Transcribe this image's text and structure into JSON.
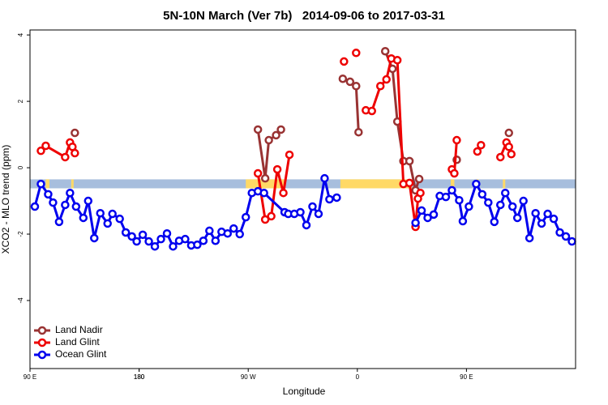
{
  "chart_data": {
    "type": "line",
    "title": "5N-10N March (Ver 7b)   2014-09-06 to 2017-03-31",
    "xlabel": "Longitude",
    "ylabel": "XCO2 - MLO trend (ppm)",
    "xlim": [
      90,
      540
    ],
    "ylim": [
      -6.05,
      4.15
    ],
    "xticks": [
      {
        "value": 90,
        "label": "90 E"
      },
      180,
      {
        "value": 270,
        "label": "90 W"
      },
      {
        "value": 360,
        "label": "0"
      },
      {
        "value": 450,
        "label": "90 E"
      },
      180.0001
    ],
    "yticks": [
      -4,
      -2,
      0,
      2,
      4
    ],
    "legend": "bottom-left",
    "band": {
      "ymin": -0.62,
      "ymax": -0.35,
      "color": "#a7bedd"
    },
    "highlight": {
      "color": "#ffd966",
      "spans": [
        [
          103,
          106
        ],
        [
          124,
          126
        ],
        [
          268,
          300
        ],
        [
          346,
          405
        ],
        [
          437,
          440
        ],
        [
          458,
          460
        ],
        [
          480,
          482
        ]
      ]
    },
    "series": [
      {
        "name": "Land Nadir",
        "color": "#993333",
        "x": [
          127,
          null,
          278,
          284,
          287,
          293,
          297,
          null,
          348,
          354,
          359,
          361,
          null,
          383,
          389,
          393,
          398,
          403,
          408,
          411,
          null,
          442,
          null,
          485
        ],
        "values": [
          1.05,
          null,
          1.15,
          -0.32,
          0.83,
          0.98,
          1.15,
          null,
          2.68,
          2.59,
          2.46,
          1.07,
          null,
          3.51,
          2.98,
          1.39,
          0.2,
          0.2,
          -0.68,
          -0.34,
          null,
          0.24,
          null,
          1.05
        ]
      },
      {
        "name": "Land Glint",
        "color": "#ee0000",
        "x": [
          99,
          103,
          119,
          123,
          125,
          127,
          null,
          278,
          284,
          289,
          294,
          299,
          304,
          null,
          349,
          null,
          359,
          null,
          367,
          372,
          379,
          384,
          388,
          393,
          398,
          403,
          408,
          410,
          412,
          null,
          438,
          440,
          442,
          null,
          459,
          462,
          null,
          478,
          483,
          485,
          487
        ],
        "values": [
          0.51,
          0.66,
          0.32,
          0.76,
          0.63,
          0.44,
          null,
          -0.17,
          -1.56,
          -1.46,
          -0.05,
          -0.76,
          0.39,
          null,
          3.2,
          null,
          3.46,
          null,
          1.73,
          1.71,
          2.46,
          2.66,
          3.29,
          3.24,
          -0.49,
          -0.46,
          -1.78,
          -0.93,
          -0.76,
          null,
          -0.05,
          -0.17,
          0.83,
          null,
          0.49,
          0.68,
          null,
          0.32,
          0.76,
          0.63,
          0.41
        ]
      },
      {
        "name": "Ocean Glint",
        "color": "#0000ee",
        "x": [
          94,
          99,
          105,
          109,
          114,
          119,
          123,
          128,
          134,
          138,
          143,
          148,
          154,
          158,
          164,
          169,
          174,
          178,
          183,
          188,
          193,
          198,
          203,
          208,
          213,
          218,
          223,
          228,
          233,
          238,
          243,
          248,
          253,
          258,
          263,
          268,
          273,
          278,
          283,
          300,
          303,
          308,
          313,
          318,
          323,
          328,
          333,
          337,
          343,
          null,
          408,
          413,
          418,
          423,
          428,
          433,
          438,
          444,
          447,
          452,
          458,
          463,
          468,
          473,
          478,
          482,
          488,
          492,
          497,
          502,
          507,
          512,
          517,
          522,
          527,
          532,
          537
        ],
        "values": [
          -1.17,
          -0.49,
          -0.8,
          -1.05,
          -1.63,
          -1.12,
          -0.76,
          -1.17,
          -1.51,
          -1.0,
          -2.12,
          -1.37,
          -1.68,
          -1.39,
          -1.54,
          -1.95,
          -2.07,
          -2.22,
          -2.02,
          -2.22,
          -2.37,
          -2.15,
          -1.98,
          -2.37,
          -2.2,
          -2.15,
          -2.34,
          -2.32,
          -2.2,
          -1.9,
          -2.2,
          -1.93,
          -1.98,
          -1.83,
          -2.0,
          -1.49,
          -0.76,
          -0.71,
          -0.76,
          -1.34,
          -1.39,
          -1.39,
          -1.34,
          -1.73,
          -1.17,
          -1.39,
          -0.32,
          -0.95,
          -0.9,
          null,
          -1.66,
          -1.29,
          -1.51,
          -1.41,
          -0.85,
          -0.88,
          -0.68,
          -0.98,
          -1.61,
          -1.17,
          -0.49,
          -0.8,
          -1.05,
          -1.63,
          -1.12,
          -0.76,
          -1.17,
          -1.51,
          -1.0,
          -2.12,
          -1.37,
          -1.68,
          -1.39,
          -1.54,
          -1.95,
          -2.07,
          -2.22
        ]
      }
    ]
  }
}
